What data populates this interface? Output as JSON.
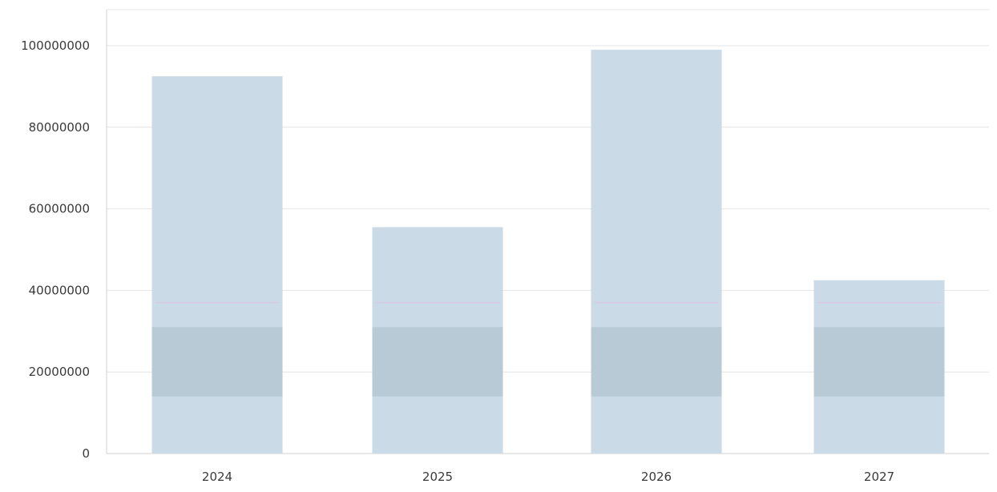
{
  "chart_data": {
    "type": "bar",
    "title": "",
    "xlabel": "",
    "ylabel": "",
    "categories": [
      "2024",
      "2025",
      "2026",
      "2027"
    ],
    "values": [
      92500000,
      55500000,
      99000000,
      42500000
    ],
    "ylim": [
      0,
      100000000
    ],
    "yticks": [
      0,
      20000000,
      40000000,
      60000000,
      80000000,
      100000000
    ],
    "ytick_labels": [
      "0",
      "20000000",
      "40000000",
      "60000000",
      "80000000",
      "100000000"
    ],
    "grid": true,
    "legend": "none",
    "colors": {
      "bar": "#cadae6",
      "bar_band": "#b5c7d2",
      "bar_accent": "#d9c8e4",
      "grid": "#e4e4e4",
      "text": "#3a3a3a"
    }
  }
}
